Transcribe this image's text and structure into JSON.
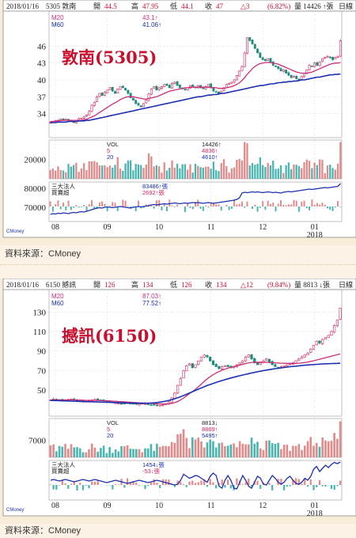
{
  "chart_data": [
    {
      "type": "candlestick",
      "header": {
        "date": "2018/01/16",
        "code_name": "5305 敦南",
        "open_label": "開",
        "open": "44.5",
        "high_label": "高",
        "high": "47.95",
        "low_label": "低",
        "low": "44.1",
        "close_label": "收",
        "close": "47",
        "change_symbol": "△",
        "change": "3",
        "change_pct": "(6.82%)",
        "volume_label": "量",
        "volume": "14426",
        "volume_unit": "↑張",
        "period": "日線"
      },
      "title": "敦南(5305)",
      "price_legend": [
        {
          "name": "M20",
          "value": "43.1↑",
          "color": "#cc2d7a"
        },
        {
          "name": "M60",
          "value": "41.06↑",
          "color": "#1a2fb0"
        }
      ],
      "price_ylim": [
        30,
        50
      ],
      "price_ticks": [
        34,
        37,
        40,
        43,
        46
      ],
      "volume_legend": [
        {
          "name": "VOL",
          "value": "14426↑",
          "color": "#222222"
        },
        {
          "name": "5",
          "value": "4836↑",
          "color": "#d0245a"
        },
        {
          "name": "20",
          "value": "4610↑",
          "color": "#1a2fb0"
        }
      ],
      "volume_ylim": [
        0,
        40000
      ],
      "volume_ticks": [
        20000
      ],
      "inst_legend": [
        {
          "name": "三大法人",
          "value": "83486↑張",
          "color": "#1a2fb0"
        },
        {
          "name": "買賣超",
          "value": "2692↑張",
          "color": "#d0245a"
        }
      ],
      "inst_ticks": [
        "80000",
        "70000"
      ],
      "x_ticks": [
        "08",
        "09",
        "10",
        "11",
        "12",
        "01"
      ],
      "x_year": "2018",
      "close": [
        32.5,
        32.6,
        32.7,
        32.8,
        33.0,
        32.9,
        33.0,
        32.8,
        32.6,
        32.4,
        32.8,
        33.1,
        33.2,
        33.5,
        33.8,
        34.4,
        35.5,
        36.0,
        37.0,
        37.6,
        37.2,
        37.8,
        38.2,
        38.6,
        38.0,
        37.6,
        38.4,
        38.8,
        38.6,
        38.2,
        37.6,
        36.8,
        36.4,
        35.8,
        35.5,
        35.2,
        35.8,
        36.4,
        37.5,
        38.4,
        38.8,
        38.2,
        38.6,
        38.8,
        39.2,
        39.0,
        38.6,
        39.4,
        39.6,
        39.0,
        38.6,
        38.4,
        38.2,
        38.6,
        39.0,
        38.8,
        38.6,
        39.0,
        38.6,
        38.4,
        38.8,
        39.2,
        38.6,
        38.0,
        37.8,
        37.6,
        38.0,
        38.6,
        39.2,
        39.4,
        39.6,
        40.0,
        40.8,
        41.6,
        42.4,
        44.8,
        47.5,
        47.0,
        46.4,
        45.6,
        44.8,
        44.0,
        43.6,
        43.4,
        43.8,
        43.2,
        42.6,
        42.4,
        42.0,
        41.6,
        41.8,
        41.2,
        40.8,
        40.4,
        40.6,
        40.2,
        40.0,
        40.6,
        41.2,
        41.8,
        42.6,
        42.4,
        43.0,
        42.6,
        43.2,
        43.8,
        44.0,
        44.2,
        44.0,
        43.6,
        44.0,
        44.2,
        47.0
      ],
      "ma20": [
        32.6,
        32.6,
        32.7,
        32.7,
        32.8,
        32.8,
        32.8,
        32.8,
        32.8,
        32.8,
        32.8,
        32.8,
        32.8,
        32.9,
        33.0,
        33.2,
        33.4,
        33.6,
        33.9,
        34.2,
        34.5,
        34.8,
        35.1,
        35.4,
        35.7,
        35.9,
        36.2,
        36.5,
        36.7,
        36.9,
        37.0,
        37.0,
        37.0,
        36.9,
        36.8,
        36.7,
        36.6,
        36.6,
        36.7,
        36.8,
        36.9,
        37.0,
        37.2,
        37.4,
        37.6,
        37.8,
        38.0,
        38.1,
        38.2,
        38.3,
        38.4,
        38.5,
        38.6,
        38.6,
        38.7,
        38.7,
        38.7,
        38.7,
        38.7,
        38.7,
        38.7,
        38.7,
        38.6,
        38.6,
        38.6,
        38.5,
        38.5,
        38.5,
        38.6,
        38.7,
        38.8,
        39.0,
        39.2,
        39.5,
        39.9,
        40.4,
        41.0,
        41.5,
        42.0,
        42.4,
        42.7,
        42.9,
        43.0,
        43.1,
        43.1,
        43.1,
        43.0,
        42.9,
        42.8,
        42.6,
        42.4,
        42.2,
        42.0,
        41.8,
        41.6,
        41.4,
        41.3,
        41.2,
        41.2,
        41.2,
        41.3,
        41.4,
        41.6,
        41.8,
        42.0,
        42.2,
        42.4,
        42.6,
        42.8,
        42.9,
        43.0,
        43.0,
        43.1
      ],
      "ma60": [
        32.4,
        32.4,
        32.4,
        32.5,
        32.5,
        32.5,
        32.5,
        32.6,
        32.6,
        32.6,
        32.6,
        32.7,
        32.7,
        32.7,
        32.8,
        32.8,
        32.9,
        33.0,
        33.1,
        33.2,
        33.3,
        33.4,
        33.5,
        33.6,
        33.7,
        33.8,
        33.9,
        34.0,
        34.1,
        34.2,
        34.3,
        34.4,
        34.5,
        34.6,
        34.7,
        34.8,
        34.9,
        35.0,
        35.1,
        35.2,
        35.3,
        35.4,
        35.5,
        35.6,
        35.7,
        35.8,
        35.9,
        36.0,
        36.1,
        36.2,
        36.3,
        36.4,
        36.5,
        36.6,
        36.7,
        36.8,
        36.9,
        37.0,
        37.0,
        37.1,
        37.2,
        37.3,
        37.3,
        37.4,
        37.4,
        37.5,
        37.6,
        37.6,
        37.7,
        37.8,
        37.9,
        38.0,
        38.1,
        38.2,
        38.3,
        38.4,
        38.5,
        38.6,
        38.7,
        38.8,
        38.9,
        39.0,
        39.0,
        39.1,
        39.2,
        39.3,
        39.3,
        39.4,
        39.5,
        39.5,
        39.6,
        39.6,
        39.7,
        39.7,
        39.8,
        39.8,
        39.9,
        40.0,
        40.0,
        40.1,
        40.2,
        40.3,
        40.4,
        40.5,
        40.5,
        40.6,
        40.7,
        40.8,
        40.9,
        40.9,
        41.0,
        41.0,
        41.06
      ],
      "inst_line": [
        0.18,
        0.2,
        0.19,
        0.21,
        0.2,
        0.22,
        0.21,
        0.2,
        0.22,
        0.23,
        0.22,
        0.24,
        0.25,
        0.24,
        0.26,
        0.28,
        0.3,
        0.32,
        0.34,
        0.35,
        0.34,
        0.36,
        0.37,
        0.36,
        0.35,
        0.36,
        0.37,
        0.38,
        0.37,
        0.36,
        0.35,
        0.34,
        0.36,
        0.37,
        0.38,
        0.37,
        0.38,
        0.39,
        0.4,
        0.42,
        0.43,
        0.42,
        0.43,
        0.44,
        0.45,
        0.44,
        0.45,
        0.46,
        0.47,
        0.46,
        0.45,
        0.46,
        0.47,
        0.46,
        0.47,
        0.48,
        0.47,
        0.48,
        0.47,
        0.46,
        0.47,
        0.48,
        0.47,
        0.46,
        0.47,
        0.48,
        0.49,
        0.5,
        0.51,
        0.52,
        0.53,
        0.54,
        0.56,
        0.6,
        0.72,
        0.74,
        0.73,
        0.74,
        0.75,
        0.74,
        0.75,
        0.74,
        0.73,
        0.74,
        0.75,
        0.74,
        0.73,
        0.74,
        0.73,
        0.72,
        0.74,
        0.75,
        0.76,
        0.75,
        0.76,
        0.77,
        0.78,
        0.79,
        0.8,
        0.81,
        0.82,
        0.81,
        0.82,
        0.83,
        0.84,
        0.85,
        0.86,
        0.85,
        0.86,
        0.87,
        0.88,
        0.89,
        0.96
      ]
    },
    {
      "type": "candlestick",
      "header": {
        "date": "2018/01/16",
        "code_name": "6150 撼訊",
        "open_label": "開",
        "open": "126",
        "high_label": "高",
        "high": "134",
        "low_label": "低",
        "low": "126",
        "close_label": "收",
        "close": "134",
        "change_symbol": "△",
        "change": "12",
        "change_pct": "(9.84%)",
        "volume_label": "量",
        "volume": "8813",
        "volume_unit": "↓張",
        "period": "日線"
      },
      "title": "撼訊(6150)",
      "price_legend": [
        {
          "name": "M20",
          "value": "87.03↑",
          "color": "#cc2d7a"
        },
        {
          "name": "M60",
          "value": "77.52↑",
          "color": "#1a2fb0"
        }
      ],
      "price_ylim": [
        25,
        140
      ],
      "price_ticks": [
        50,
        70,
        90,
        110,
        130
      ],
      "volume_legend": [
        {
          "name": "VOL",
          "value": "8813↓",
          "color": "#222222"
        },
        {
          "name": "5",
          "value": "8869↑",
          "color": "#d0245a"
        },
        {
          "name": "20",
          "value": "5495↑",
          "color": "#1a2fb0"
        }
      ],
      "volume_ylim": [
        0,
        16000
      ],
      "volume_ticks": [
        7000
      ],
      "inst_legend": [
        {
          "name": "三大法人",
          "value": "1454↓張",
          "color": "#1a2fb0"
        },
        {
          "name": "買賣超",
          "value": "-53↓張",
          "color": "#d0245a"
        }
      ],
      "inst_ticks": [],
      "x_ticks": [
        "08",
        "09",
        "10",
        "11",
        "12",
        "01"
      ],
      "x_year": "2018",
      "close": [
        40.0,
        41.0,
        40.5,
        40.0,
        39.5,
        40.0,
        40.5,
        41.0,
        40.0,
        39.0,
        38.5,
        38.0,
        38.5,
        39.0,
        40.0,
        40.5,
        40.0,
        39.5,
        39.0,
        38.5,
        38.0,
        37.5,
        37.0,
        36.5,
        36.0,
        36.5,
        37.0,
        36.5,
        36.0,
        35.5,
        36.0,
        36.5,
        36.0,
        35.5,
        35.0,
        34.5,
        34.0,
        34.5,
        35.0,
        36.0,
        38.0,
        42.0,
        47.0,
        55.0,
        62.0,
        70.0,
        75.0,
        77.0,
        73.0,
        76.0,
        80.0,
        84.0,
        86.0,
        84.0,
        80.0,
        76.0,
        74.0,
        72.0,
        74.0,
        75.0,
        74.0,
        73.0,
        74.0,
        76.0,
        78.0,
        80.0,
        84.0,
        86.0,
        82.0,
        78.0,
        76.0,
        78.0,
        80.0,
        82.0,
        79.0,
        76.0,
        74.0,
        73.0,
        74.0,
        75.0,
        76.0,
        77.0,
        78.0,
        80.0,
        82.0,
        84.0,
        86.0,
        88.0,
        92.0,
        96.0,
        100.0,
        98.0,
        102.0,
        104.0,
        106.0,
        110.0,
        116.0,
        122.0,
        134.0
      ],
      "ma20": [
        40.0,
        40.0,
        40.0,
        40.0,
        40.0,
        40.0,
        40.0,
        40.0,
        40.0,
        39.9,
        39.8,
        39.7,
        39.6,
        39.5,
        39.5,
        39.5,
        39.4,
        39.3,
        39.2,
        39.1,
        39.0,
        38.8,
        38.6,
        38.4,
        38.2,
        38.0,
        37.8,
        37.6,
        37.4,
        37.2,
        37.0,
        36.9,
        36.8,
        36.6,
        36.4,
        36.2,
        36.0,
        35.9,
        35.8,
        35.9,
        36.1,
        36.5,
        37.2,
        38.4,
        40.0,
        42.0,
        44.2,
        46.5,
        48.5,
        50.8,
        53.4,
        56.2,
        59.0,
        61.6,
        63.8,
        65.8,
        67.6,
        69.0,
        70.4,
        71.6,
        72.6,
        73.4,
        74.2,
        74.9,
        75.6,
        76.4,
        77.2,
        78.0,
        78.4,
        78.6,
        78.6,
        78.6,
        78.6,
        78.6,
        78.4,
        78.2,
        78.0,
        77.8,
        77.6,
        77.5,
        77.4,
        77.3,
        77.3,
        77.4,
        77.6,
        77.9,
        78.3,
        78.8,
        79.4,
        80.1,
        80.9,
        81.6,
        82.4,
        83.2,
        84.0,
        84.8,
        85.6,
        86.3,
        87.03
      ],
      "ma60": [
        39.5,
        39.4,
        39.3,
        39.2,
        39.1,
        39.0,
        38.9,
        38.8,
        38.7,
        38.6,
        38.5,
        38.4,
        38.3,
        38.2,
        38.1,
        38.0,
        37.9,
        37.8,
        37.7,
        37.6,
        37.5,
        37.4,
        37.3,
        37.2,
        37.1,
        37.0,
        36.9,
        36.8,
        36.7,
        36.6,
        36.6,
        36.6,
        36.6,
        36.7,
        36.8,
        37.0,
        37.3,
        37.7,
        38.2,
        38.8,
        39.5,
        40.3,
        41.2,
        42.2,
        43.3,
        44.5,
        45.8,
        47.1,
        48.4,
        49.7,
        51.0,
        52.3,
        53.5,
        54.7,
        55.8,
        56.9,
        57.9,
        58.9,
        59.8,
        60.7,
        61.6,
        62.4,
        63.2,
        64.0,
        64.8,
        65.5,
        66.2,
        66.9,
        67.6,
        68.2,
        68.8,
        69.4,
        70.0,
        70.5,
        71.0,
        71.5,
        72.0,
        72.4,
        72.8,
        73.2,
        73.6,
        74.0,
        74.3,
        74.6,
        74.9,
        75.2,
        75.5,
        75.8,
        76.0,
        76.2,
        76.4,
        76.6,
        76.8,
        77.0,
        77.1,
        77.2,
        77.3,
        77.4,
        77.52
      ],
      "inst_line": [
        0.5,
        0.52,
        0.5,
        0.48,
        0.5,
        0.52,
        0.5,
        0.48,
        0.46,
        0.48,
        0.5,
        0.52,
        0.5,
        0.48,
        0.5,
        0.52,
        0.5,
        0.48,
        0.46,
        0.44,
        0.46,
        0.48,
        0.5,
        0.48,
        0.46,
        0.44,
        0.42,
        0.44,
        0.46,
        0.48,
        0.5,
        0.48,
        0.46,
        0.44,
        0.46,
        0.48,
        0.5,
        0.48,
        0.46,
        0.44,
        0.42,
        0.4,
        0.38,
        0.4,
        0.5,
        0.65,
        0.6,
        0.55,
        0.58,
        0.62,
        0.6,
        0.55,
        0.5,
        0.45,
        0.6,
        0.68,
        0.62,
        0.35,
        0.3,
        0.5,
        0.62,
        0.5,
        0.3,
        0.28,
        0.45,
        0.62,
        0.5,
        0.35,
        0.3,
        0.45,
        0.6,
        0.55,
        0.4,
        0.38,
        0.5,
        0.62,
        0.55,
        0.45,
        0.4,
        0.45,
        0.55,
        0.6,
        0.5,
        0.42,
        0.4,
        0.45,
        0.55,
        0.5,
        0.6,
        0.78,
        0.85,
        0.72,
        0.8,
        0.88,
        0.82,
        0.9,
        0.95,
        0.92,
        0.96
      ]
    }
  ],
  "sources": [
    {
      "label": "資料來源：CMoney"
    },
    {
      "label": "資料來源：CMoney"
    }
  ],
  "colors": {
    "up": "#d0245a",
    "down": "#1f8a7a",
    "ma20": "#cc2d7a",
    "ma60": "#1a2fb0",
    "title": "#c8102e",
    "vol_up": "#e08a8a",
    "vol_down": "#4ab5b0"
  }
}
